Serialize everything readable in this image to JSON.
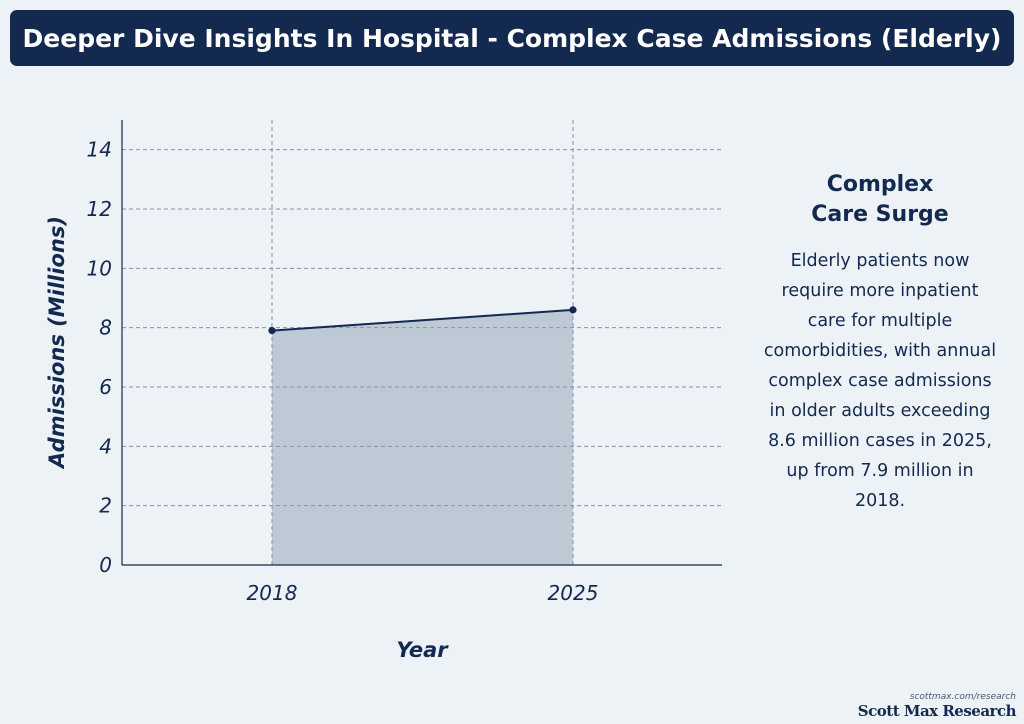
{
  "header": {
    "title": "Deeper Dive Insights In Hospital - Complex Case Admissions (Elderly)"
  },
  "chart_data": {
    "type": "area",
    "title": "Deeper Dive Insights In Hospital - Complex Case Admissions (Elderly)",
    "xlabel": "Year",
    "ylabel": "Admissions (Millions)",
    "categories": [
      "2018",
      "2025"
    ],
    "values": [
      7.9,
      8.6
    ],
    "ylim": [
      0,
      15
    ],
    "yticks": [
      0,
      2,
      4,
      6,
      8,
      10,
      12,
      14
    ],
    "grid": true,
    "colors": {
      "line": "#14294f",
      "fill": "#bec9d6",
      "grid": "#8a93a3",
      "axis": "#14294f"
    }
  },
  "sidebar": {
    "heading_line1": "Complex",
    "heading_line2": "Care Surge",
    "body": "Elderly patients now require more inpatient care for multiple comorbidities, with annual complex case admissions in older adults exceeding 8.6 million cases in 2025, up from 7.9 million in 2018."
  },
  "footer": {
    "url": "scottmax.com/research",
    "brand": "Scott Max Research"
  }
}
